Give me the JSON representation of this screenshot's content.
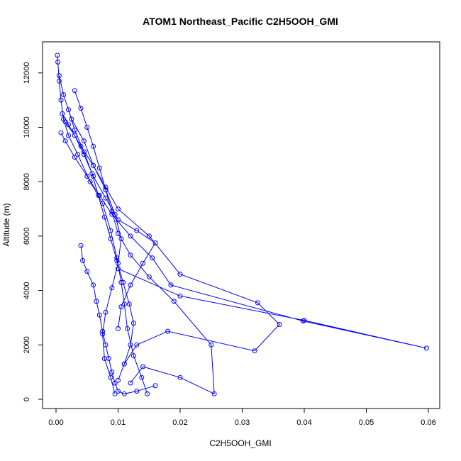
{
  "chart_data": {
    "type": "scatter",
    "title": "ATOM1 Northeast_Pacific C2H5OOH_GMI",
    "xlabel": "C2H5OOH_GMI",
    "ylabel": "Altitude (m)",
    "xlim": [
      0,
      0.06
    ],
    "ylim": [
      0,
      12700
    ],
    "x_ticks": [
      "0.00",
      "0.01",
      "0.02",
      "0.03",
      "0.04",
      "0.05",
      "0.06"
    ],
    "y_ticks": [
      "0",
      "2000",
      "4000",
      "6000",
      "8000",
      "10000",
      "12000"
    ],
    "grid": false,
    "legend": "none",
    "series": [
      {
        "color": "#0000ff",
        "marker": "open-circle",
        "line": true,
        "x": [
          0.0002,
          0.0003,
          0.0005,
          0.0008,
          0.0012,
          0.002,
          0.0035,
          0.0055,
          0.0075,
          0.0088,
          0.0098,
          0.0105,
          0.011,
          0.0115,
          0.0125,
          0.0138,
          0.0147
        ],
        "y": [
          12650,
          12400,
          11700,
          11000,
          10300,
          9700,
          9000,
          8000,
          7200,
          6200,
          5200,
          4300,
          3500,
          2600,
          1600,
          800,
          200
        ]
      },
      {
        "color": "#0000ff",
        "marker": "open-circle",
        "line": true,
        "x": [
          0.001,
          0.002,
          0.004,
          0.006,
          0.008,
          0.01,
          0.015,
          0.02,
          0.0325,
          0.036,
          0.032,
          0.018,
          0.013,
          0.011
        ],
        "y": [
          10500,
          10100,
          9300,
          8600,
          7800,
          7000,
          6000,
          4600,
          3550,
          2750,
          1780,
          2500,
          2000,
          1300
        ]
      },
      {
        "color": "#0000ff",
        "marker": "open-circle",
        "line": true,
        "x": [
          0.0008,
          0.0015,
          0.003,
          0.005,
          0.007,
          0.009,
          0.012,
          0.0155,
          0.0185,
          0.0398,
          0.0597,
          0.04,
          0.02,
          0.01
        ],
        "y": [
          9800,
          9500,
          8900,
          8200,
          7500,
          6800,
          6000,
          5200,
          4200,
          2880,
          1880,
          2900,
          3800,
          4800
        ]
      },
      {
        "color": "#0000ff",
        "marker": "open-circle",
        "line": true,
        "x": [
          0.003,
          0.004,
          0.005,
          0.006,
          0.007,
          0.008,
          0.009,
          0.01,
          0.012,
          0.015,
          0.019,
          0.025,
          0.0255,
          0.02,
          0.014,
          0.012
        ],
        "y": [
          11350,
          10700,
          10000,
          9300,
          8500,
          7700,
          6900,
          6100,
          5300,
          4500,
          3600,
          2000,
          200,
          800,
          1200,
          600
        ]
      },
      {
        "color": "#0000ff",
        "marker": "open-circle",
        "line": true,
        "x": [
          0.0005,
          0.0012,
          0.0025,
          0.0045,
          0.006,
          0.008,
          0.0095,
          0.0105,
          0.01,
          0.009,
          0.008,
          0.0075,
          0.0078,
          0.0088,
          0.0095
        ],
        "y": [
          11900,
          11200,
          10300,
          9500,
          8600,
          7700,
          6800,
          5900,
          5000,
          4100,
          3200,
          2400,
          1500,
          800,
          200
        ]
      },
      {
        "color": "#0000ff",
        "marker": "open-circle",
        "line": true,
        "x": [
          0.004,
          0.0043,
          0.005,
          0.006,
          0.0065,
          0.007,
          0.0075,
          0.008,
          0.0085,
          0.009,
          0.0095,
          0.01,
          0.011,
          0.013,
          0.016
        ],
        "y": [
          5650,
          5100,
          4700,
          4200,
          3600,
          3100,
          2500,
          2000,
          1500,
          1000,
          600,
          300,
          200,
          300,
          500
        ]
      },
      {
        "color": "#0000ff",
        "marker": "open-circle",
        "line": true,
        "x": [
          0.0015,
          0.003,
          0.0045,
          0.006,
          0.008,
          0.01,
          0.013,
          0.016,
          0.014,
          0.012,
          0.0105,
          0.01
        ],
        "y": [
          10200,
          9700,
          9000,
          8200,
          7400,
          6600,
          6200,
          5750,
          5000,
          4200,
          3400,
          2600
        ]
      },
      {
        "color": "#0000ff",
        "marker": "open-circle",
        "line": true,
        "x": [
          0.002,
          0.003,
          0.0045,
          0.0058,
          0.0068,
          0.0078,
          0.0088,
          0.0098,
          0.0108,
          0.0118,
          0.0125,
          0.012,
          0.011,
          0.01
        ],
        "y": [
          10650,
          9900,
          9100,
          8300,
          7500,
          6700,
          5900,
          5100,
          4300,
          3500,
          2800,
          2000,
          1300,
          700
        ]
      }
    ]
  }
}
